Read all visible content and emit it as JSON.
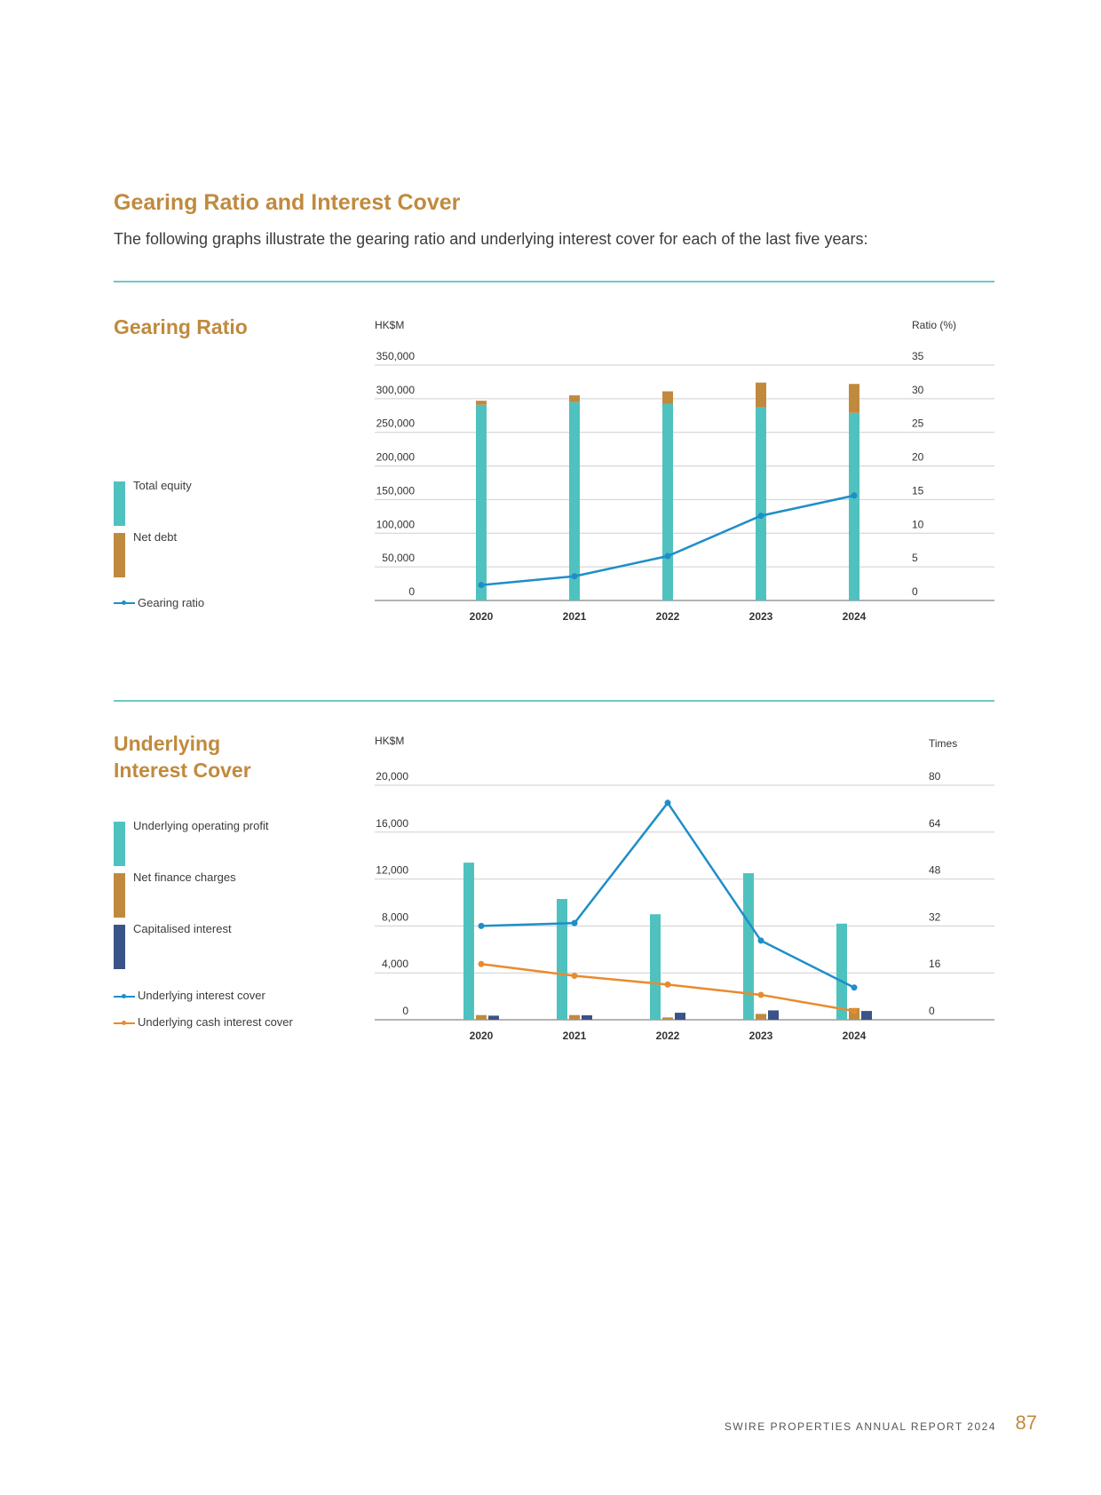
{
  "heading": "Gearing Ratio and Interest Cover",
  "intro": "The following graphs illustrate the gearing ratio and underlying interest cover for each of the last five years:",
  "footer": {
    "report": "SWIRE PROPERTIES ANNUAL REPORT 2024",
    "page": "87"
  },
  "colors": {
    "gold": "#c08a3e",
    "teal": "#4fc2bf",
    "navy": "#3a5388",
    "blue_line": "#1e8ec9",
    "orange_line": "#e88b2e"
  },
  "section1": {
    "title": "Gearing Ratio",
    "legend": [
      {
        "label": "Total equity",
        "color": "#4fc2bf",
        "kind": "bar"
      },
      {
        "label": "Net debt",
        "color": "#c08a3e",
        "kind": "bar"
      },
      {
        "label": "Gearing ratio",
        "color": "#1e8ec9",
        "kind": "line"
      }
    ]
  },
  "section2": {
    "title_line1": "Underlying",
    "title_line2": "Interest Cover",
    "legend": [
      {
        "label": "Underlying operating profit",
        "color": "#4fc2bf",
        "kind": "bar"
      },
      {
        "label": "Net finance charges",
        "color": "#c08a3e",
        "kind": "bar"
      },
      {
        "label": "Capitalised interest",
        "color": "#3a5388",
        "kind": "bar"
      },
      {
        "label": "Underlying interest cover",
        "color": "#1e8ec9",
        "kind": "line"
      },
      {
        "label": "Underlying cash interest cover",
        "color": "#e88b2e",
        "kind": "line"
      }
    ]
  },
  "chart_data": [
    {
      "type": "bar",
      "title": "Gearing Ratio",
      "ylabel_left": "HK$M",
      "ylabel_right": "Ratio (%)",
      "categories": [
        "2020",
        "2021",
        "2022",
        "2023",
        "2024"
      ],
      "y_ticks_left": [
        "0",
        "50,000",
        "100,000",
        "150,000",
        "200,000",
        "250,000",
        "300,000",
        "350,000"
      ],
      "y_ticks_right": [
        "0",
        "5",
        "10",
        "15",
        "20",
        "25",
        "30",
        "35"
      ],
      "ylim_left": [
        0,
        350000
      ],
      "ylim_right": [
        0,
        35
      ],
      "stacked": true,
      "series": [
        {
          "name": "Total equity",
          "kind": "bar",
          "axis": "left",
          "color": "#4fc2bf",
          "values": [
            291000,
            295000,
            292000,
            287000,
            279000
          ]
        },
        {
          "name": "Net debt",
          "kind": "bar",
          "axis": "left",
          "color": "#c08a3e",
          "values": [
            6000,
            10000,
            19000,
            37000,
            43000
          ]
        },
        {
          "name": "Gearing ratio",
          "kind": "line",
          "axis": "right",
          "color": "#1e8ec9",
          "values": [
            2.3,
            3.6,
            6.6,
            12.6,
            15.6
          ]
        }
      ],
      "grid": true
    },
    {
      "type": "bar",
      "title": "Underlying Interest Cover",
      "ylabel_left": "HK$M",
      "ylabel_right": "Times",
      "categories": [
        "2020",
        "2021",
        "2022",
        "2023",
        "2024"
      ],
      "y_ticks_left": [
        "0",
        "4,000",
        "8,000",
        "12,000",
        "16,000",
        "20,000"
      ],
      "y_ticks_right": [
        "0",
        "16",
        "32",
        "48",
        "64",
        "80"
      ],
      "ylim_left": [
        0,
        20000
      ],
      "ylim_right": [
        0,
        80
      ],
      "stacked": false,
      "series": [
        {
          "name": "Underlying operating profit",
          "kind": "bar",
          "axis": "left",
          "color": "#4fc2bf",
          "values": [
            13400,
            10300,
            9000,
            12500,
            8200
          ]
        },
        {
          "name": "Net finance charges",
          "kind": "bar",
          "axis": "left",
          "color": "#c08a3e",
          "values": [
            400,
            400,
            200,
            500,
            1000
          ]
        },
        {
          "name": "Capitalised interest",
          "kind": "bar",
          "axis": "left",
          "color": "#3a5388",
          "values": [
            350,
            380,
            600,
            800,
            750
          ]
        },
        {
          "name": "Underlying interest cover",
          "kind": "line",
          "axis": "right",
          "color": "#1e8ec9",
          "values": [
            32,
            33,
            74,
            27,
            11
          ]
        },
        {
          "name": "Underlying cash interest cover",
          "kind": "line",
          "axis": "right",
          "color": "#e88b2e",
          "values": [
            19,
            15,
            12,
            8.5,
            3
          ]
        }
      ],
      "grid": true
    }
  ]
}
